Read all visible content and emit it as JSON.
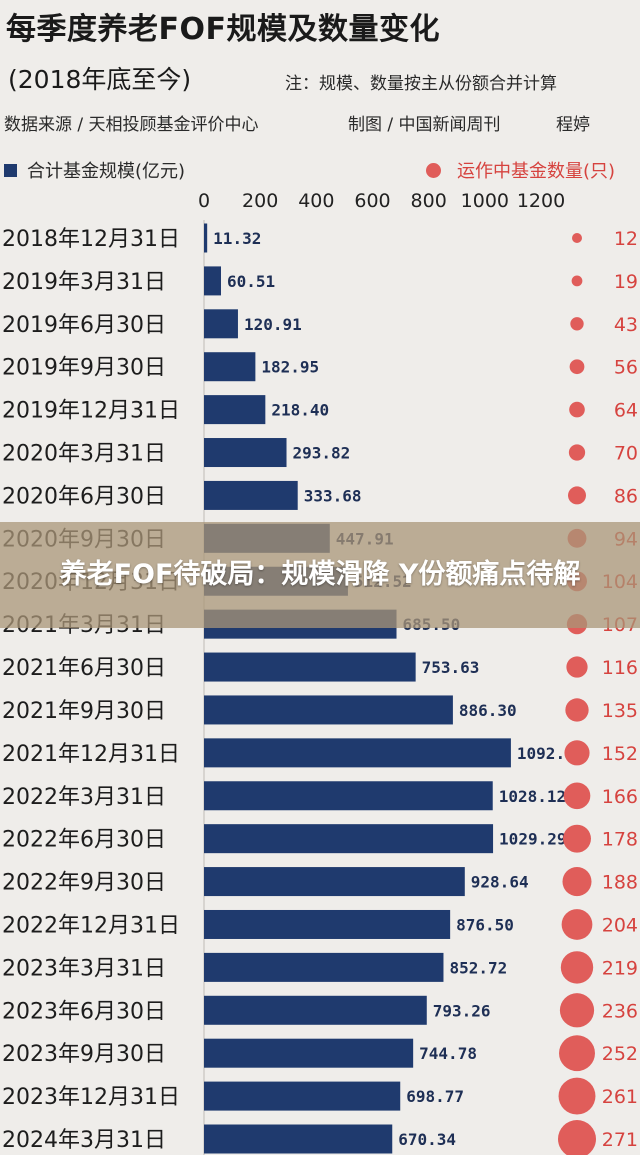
{
  "header": {
    "title": "每季度养老FOF规模及数量变化",
    "subtitle": "(2018年底至今)",
    "note": "注：规模、数量按主从份额合并计算",
    "source": "数据来源 / 天相投顾基金评价中心",
    "credit_label": "制图 / 中国新闻周刊",
    "credit_author": "程婷"
  },
  "legend": {
    "bar_label": "合计基金规模(亿元)",
    "bubble_label": "运作中基金数量(只)"
  },
  "colors": {
    "bar": "#1f3a6e",
    "bubble": "#e05d5a",
    "bubble_text": "#d6433f",
    "background": "#efedea"
  },
  "chart_data": {
    "type": "bar",
    "orientation": "horizontal",
    "title": "每季度养老FOF规模及数量变化",
    "subtitle": "(2018年底至今)",
    "xlim": [
      0,
      1200
    ],
    "x_ticks": [
      0,
      200,
      400,
      600,
      800,
      1000,
      1200
    ],
    "grid": false,
    "legend_position": "top",
    "categories": [
      "2018年12月31日",
      "2019年3月31日",
      "2019年6月30日",
      "2019年9月30日",
      "2019年12月31日",
      "2020年3月31日",
      "2020年6月30日",
      "2020年9月30日",
      "2020年12月31日",
      "2021年3月31日",
      "2021年6月30日",
      "2021年9月30日",
      "2021年12月31日",
      "2022年3月31日",
      "2022年6月30日",
      "2022年9月30日",
      "2022年12月31日",
      "2023年3月31日",
      "2023年6月30日",
      "2023年9月30日",
      "2023年12月31日",
      "2024年3月31日"
    ],
    "series": [
      {
        "name": "合计基金规模(亿元)",
        "values": [
          11.32,
          60.51,
          120.91,
          182.95,
          218.4,
          293.82,
          333.68,
          447.91,
          512.52,
          685.5,
          753.63,
          886.3,
          1092.86,
          1028.12,
          1029.29,
          928.64,
          876.5,
          852.72,
          793.26,
          744.78,
          698.77,
          670.34
        ],
        "labels": [
          "11.32",
          "60.51",
          "120.91",
          "182.95",
          "218.40",
          "293.82",
          "333.68",
          "447.91",
          "512.52",
          "685.50",
          "753.63",
          "886.30",
          "1092.86",
          "1028.12",
          "1029.29",
          "928.64",
          "876.50",
          "852.72",
          "793.26",
          "744.78",
          "698.77",
          "670.34"
        ]
      },
      {
        "name": "运作中基金数量(只)",
        "values": [
          12,
          19,
          43,
          56,
          64,
          70,
          86,
          94,
          104,
          107,
          116,
          135,
          152,
          166,
          178,
          188,
          204,
          219,
          236,
          252,
          261,
          271
        ]
      }
    ]
  },
  "overlay": {
    "text": "养老FOF待破局：规模滑降 Y份额痛点待解"
  }
}
